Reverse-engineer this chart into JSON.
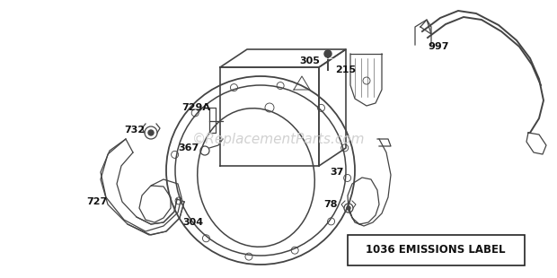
{
  "background_color": "#ffffff",
  "watermark": "©ReplacementParts.com",
  "watermark_color": "#cccccc",
  "watermark_fontsize": 11,
  "label_fontsize": 8,
  "box_label": "1036 EMISSIONS LABEL",
  "line_color": "#444444",
  "lw": 0.9
}
